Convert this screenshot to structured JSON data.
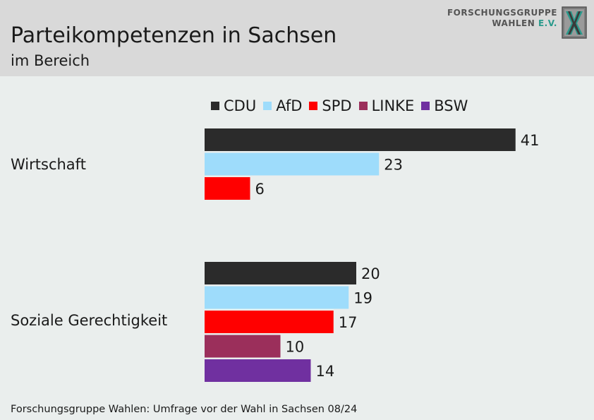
{
  "header": {
    "title": "Parteikompetenzen in Sachsen",
    "subtitle": "im Bereich",
    "logo_line1": "FORSCHUNGSGRUPPE",
    "logo_line2_a": "WAHLEN ",
    "logo_line2_b": "E.V."
  },
  "colors": {
    "CDU": "#2b2b2b",
    "AfD": "#9edcfb",
    "SPD": "#ff0000",
    "LINKE": "#9b2f5b",
    "BSW": "#7030a0"
  },
  "chart_data": {
    "type": "bar",
    "orientation": "horizontal",
    "title": "Parteikompetenzen in Sachsen",
    "subtitle": "im Bereich",
    "legend": [
      "CDU",
      "AfD",
      "SPD",
      "LINKE",
      "BSW"
    ],
    "legend_position": "top",
    "grid": false,
    "categories": [
      {
        "label": "Wirtschaft",
        "bars": [
          {
            "party": "CDU",
            "value": 41
          },
          {
            "party": "AfD",
            "value": 23
          },
          {
            "party": "SPD",
            "value": 6
          }
        ]
      },
      {
        "label": "Soziale Gerechtigkeit",
        "bars": [
          {
            "party": "CDU",
            "value": 20
          },
          {
            "party": "AfD",
            "value": 19
          },
          {
            "party": "SPD",
            "value": 17
          },
          {
            "party": "LINKE",
            "value": 10
          },
          {
            "party": "BSW",
            "value": 14
          }
        ]
      }
    ],
    "xlim": [
      0,
      50
    ]
  },
  "footer": {
    "source": "Forschungsgruppe Wahlen: Umfrage vor der Wahl in Sachsen 08/24"
  }
}
